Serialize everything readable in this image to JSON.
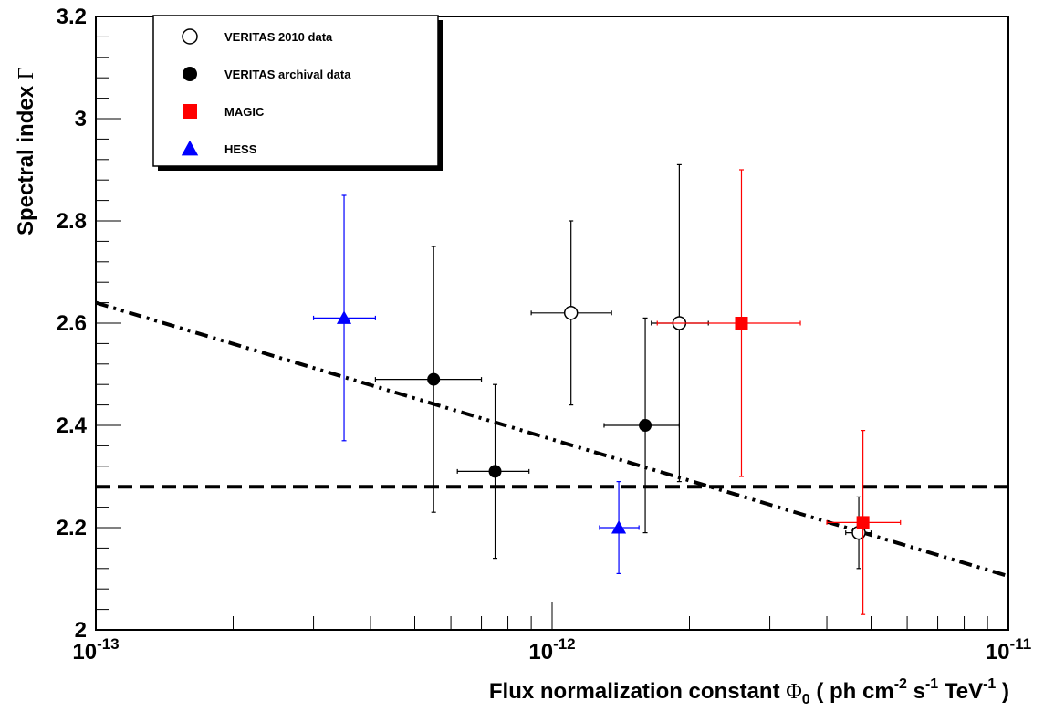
{
  "chart_data": {
    "type": "scatter",
    "x_scale": "log",
    "xlim": [
      1e-13,
      1e-11
    ],
    "ylim": [
      2.0,
      3.2
    ],
    "xlabel": {
      "prefix": "Flux normalization constant ",
      "symbol": "Φ",
      "symbol_sub": "0",
      "unit_open": " ( ph cm",
      "unit_cm_exp": "-2",
      "unit_s": " s",
      "unit_s_exp": "-1",
      "unit_tev": " TeV",
      "unit_tev_exp": "-1",
      "unit_close": " )"
    },
    "ylabel": {
      "text": "Spectral index ",
      "symbol": "Γ"
    },
    "x_tick_labels": [
      {
        "base": "10",
        "exp": "-13",
        "value": 1e-13
      },
      {
        "base": "10",
        "exp": "-12",
        "value": 1e-12
      },
      {
        "base": "10",
        "exp": "-11",
        "value": 1e-11
      }
    ],
    "y_tick_labels": [
      "2",
      "2.2",
      "2.4",
      "2.6",
      "2.8",
      "3",
      "3.2"
    ],
    "y_tick_values": [
      2.0,
      2.2,
      2.4,
      2.6,
      2.8,
      3.0,
      3.2
    ],
    "grid": false,
    "legend_position": "top-left",
    "series": [
      {
        "name": "VERITAS 2010 data",
        "marker": "open-circle",
        "color": "#000000",
        "points": [
          {
            "x": 1.1e-12,
            "y": 2.62,
            "x_lo": 9e-13,
            "x_hi": 1.35e-12,
            "y_lo": 2.44,
            "y_hi": 2.8
          },
          {
            "x": 1.9e-12,
            "y": 2.6,
            "x_lo": 1.65e-12,
            "x_hi": 2.2e-12,
            "y_lo": 2.29,
            "y_hi": 2.91
          },
          {
            "x": 4.7e-12,
            "y": 2.19,
            "x_lo": 4.4e-12,
            "x_hi": 5e-12,
            "y_lo": 2.12,
            "y_hi": 2.26
          }
        ]
      },
      {
        "name": "VERITAS archival data",
        "marker": "filled-circle",
        "color": "#000000",
        "points": [
          {
            "x": 5.5e-13,
            "y": 2.49,
            "x_lo": 4.1e-13,
            "x_hi": 7e-13,
            "y_lo": 2.23,
            "y_hi": 2.75
          },
          {
            "x": 7.5e-13,
            "y": 2.31,
            "x_lo": 6.2e-13,
            "x_hi": 8.9e-13,
            "y_lo": 2.14,
            "y_hi": 2.48
          },
          {
            "x": 1.6e-12,
            "y": 2.4,
            "x_lo": 1.3e-12,
            "x_hi": 1.9e-12,
            "y_lo": 2.19,
            "y_hi": 2.61
          }
        ]
      },
      {
        "name": "MAGIC",
        "marker": "filled-square",
        "color": "#ff0000",
        "points": [
          {
            "x": 2.6e-12,
            "y": 2.6,
            "x_lo": 1.7e-12,
            "x_hi": 3.5e-12,
            "y_lo": 2.3,
            "y_hi": 2.9
          },
          {
            "x": 4.8e-12,
            "y": 2.21,
            "x_lo": 4e-12,
            "x_hi": 5.8e-12,
            "y_lo": 2.03,
            "y_hi": 2.39
          }
        ]
      },
      {
        "name": "HESS",
        "marker": "filled-triangle",
        "color": "#0000ff",
        "points": [
          {
            "x": 3.5e-13,
            "y": 2.61,
            "x_lo": 3e-13,
            "x_hi": 4.1e-13,
            "y_lo": 2.37,
            "y_hi": 2.85
          },
          {
            "x": 1.4e-12,
            "y": 2.2,
            "x_lo": 1.27e-12,
            "x_hi": 1.55e-12,
            "y_lo": 2.11,
            "y_hi": 2.29
          }
        ]
      }
    ],
    "fit_lines": [
      {
        "style": "dashed",
        "color": "#000000",
        "x": [
          1e-13,
          1e-11
        ],
        "y": [
          2.28,
          2.28
        ]
      },
      {
        "style": "dash-dot-dot",
        "color": "#000000",
        "x": [
          1e-13,
          1e-11
        ],
        "y": [
          2.64,
          2.105
        ]
      }
    ]
  }
}
